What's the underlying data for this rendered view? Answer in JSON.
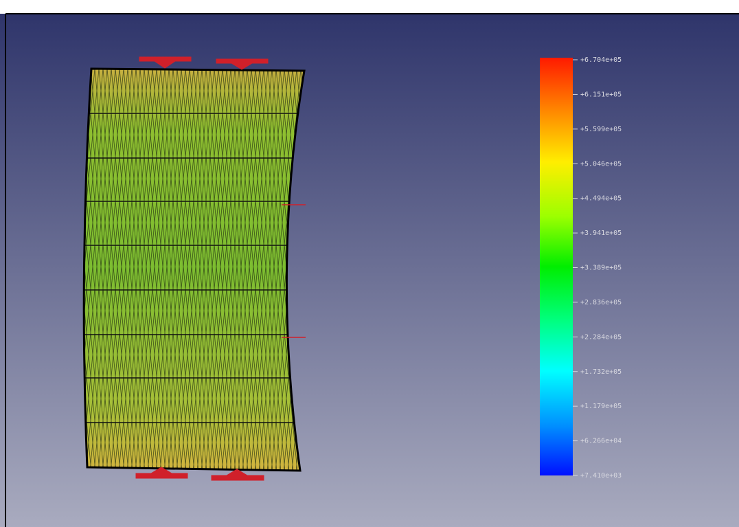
{
  "color_scale": {
    "labels": [
      "+6.704e+05",
      "+6.151e+05",
      "+5.599e+05",
      "+5.046e+05",
      "+4.494e+05",
      "+3.941e+05",
      "+3.389e+05",
      "+2.836e+05",
      "+2.284e+05",
      "+1.732e+05",
      "+1.179e+05",
      "+6.266e+04",
      "+7.410e+03"
    ]
  }
}
